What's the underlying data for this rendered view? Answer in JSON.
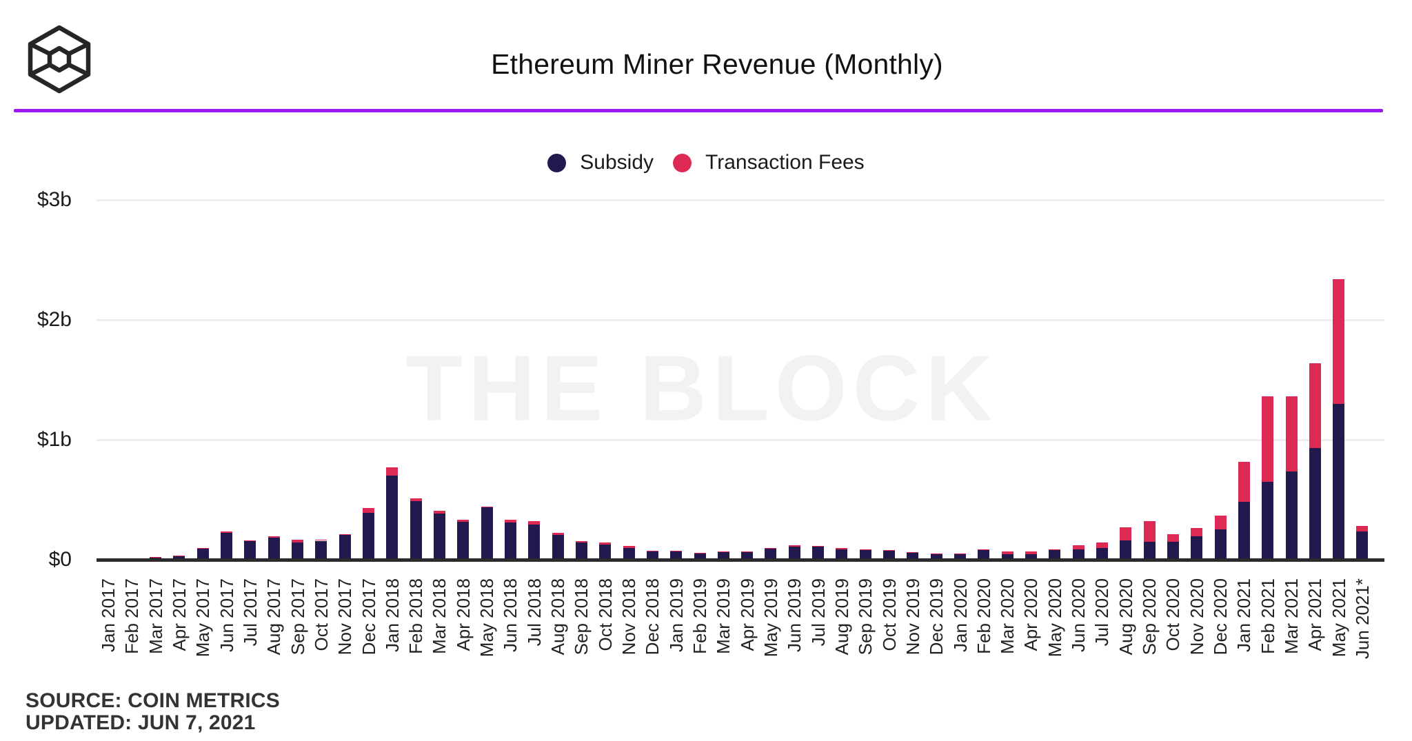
{
  "header": {
    "title": "Ethereum Miner Revenue (Monthly)"
  },
  "accent_color": "#9d18f0",
  "legend": [
    {
      "label": "Subsidy",
      "color": "#221a4e"
    },
    {
      "label": "Transaction Fees",
      "color": "#dc2a55"
    }
  ],
  "watermark": "THE BLOCK",
  "footer": {
    "source": "SOURCE: COIN METRICS",
    "updated": "UPDATED: JUN 7, 2021"
  },
  "chart_data": {
    "type": "bar",
    "stacked": true,
    "title": "Ethereum Miner Revenue (Monthly)",
    "unit": "USD billions",
    "legend_position": "top",
    "grid": true,
    "gridline_color": "#ededed",
    "baseline_color": "#2b2b2b",
    "y_axis": {
      "range": [
        0,
        3
      ],
      "ticks": [
        {
          "label": "$3b",
          "value": 3
        },
        {
          "label": "$2b",
          "value": 2
        },
        {
          "label": "$1b",
          "value": 1
        },
        {
          "label": "$0",
          "value": 0
        }
      ]
    },
    "categories": [
      "Jan 2017",
      "Feb 2017",
      "Mar 2017",
      "Apr 2017",
      "May 2017",
      "Jun 2017",
      "Jul 2017",
      "Aug 2017",
      "Sep 2017",
      "Oct 2017",
      "Nov 2017",
      "Dec 2017",
      "Jan 2018",
      "Feb 2018",
      "Mar 2018",
      "Apr 2018",
      "May 2018",
      "Jun 2018",
      "Jul 2018",
      "Aug 2018",
      "Sep 2018",
      "Oct 2018",
      "Nov 2018",
      "Dec 2018",
      "Jan 2019",
      "Feb 2019",
      "Mar 2019",
      "Apr 2019",
      "May 2019",
      "Jun 2019",
      "Jul 2019",
      "Aug 2019",
      "Sep 2019",
      "Oct 2019",
      "Nov 2019",
      "Dec 2019",
      "Jan 2020",
      "Feb 2020",
      "Mar 2020",
      "Apr 2020",
      "May 2020",
      "Jun 2020",
      "Jul 2020",
      "Aug 2020",
      "Sep 2020",
      "Oct 2020",
      "Nov 2020",
      "Dec 2020",
      "Jan 2021",
      "Feb 2021",
      "Mar 2021",
      "Apr 2021",
      "May 2021",
      "Jun 2021*"
    ],
    "series": [
      {
        "name": "Subsidy",
        "color": "#221a4e",
        "values": [
          0.01,
          0.01,
          0.019,
          0.032,
          0.09,
          0.225,
          0.155,
          0.185,
          0.145,
          0.158,
          0.205,
          0.39,
          0.7,
          0.487,
          0.387,
          0.314,
          0.435,
          0.31,
          0.295,
          0.205,
          0.145,
          0.128,
          0.1,
          0.068,
          0.07,
          0.053,
          0.066,
          0.062,
          0.092,
          0.11,
          0.108,
          0.085,
          0.078,
          0.072,
          0.058,
          0.045,
          0.048,
          0.08,
          0.048,
          0.046,
          0.078,
          0.084,
          0.096,
          0.161,
          0.147,
          0.147,
          0.195,
          0.253,
          0.485,
          0.651,
          0.738,
          0.93,
          1.3,
          0.235
        ]
      },
      {
        "name": "Transaction Fees",
        "color": "#dc2a55",
        "values": [
          0.001,
          0.001,
          0.002,
          0.003,
          0.008,
          0.012,
          0.008,
          0.008,
          0.024,
          0.006,
          0.008,
          0.04,
          0.069,
          0.025,
          0.02,
          0.019,
          0.01,
          0.023,
          0.025,
          0.019,
          0.008,
          0.014,
          0.015,
          0.006,
          0.005,
          0.004,
          0.005,
          0.005,
          0.007,
          0.008,
          0.008,
          0.011,
          0.006,
          0.006,
          0.005,
          0.004,
          0.004,
          0.005,
          0.023,
          0.025,
          0.008,
          0.038,
          0.046,
          0.111,
          0.172,
          0.067,
          0.067,
          0.115,
          0.333,
          0.709,
          0.623,
          0.71,
          1.04,
          0.045
        ]
      }
    ]
  }
}
